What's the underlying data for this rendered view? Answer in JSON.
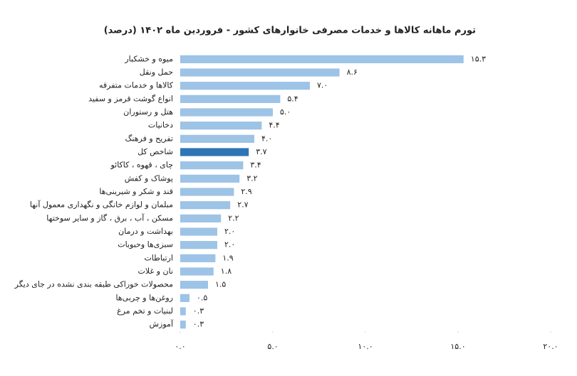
{
  "chart_data": {
    "type": "bar",
    "orientation": "horizontal",
    "title": "تورم ماهانه کالاها و خدمات مصرفی خانوارهای کشور - فروردین ماه ۱۴۰۲ (درصد)",
    "categories": [
      "میوه و خشکبار",
      "حمل ونقل",
      "کالاها و خدمات متفرقه",
      "انواع گوشت قرمز و سفید",
      "هتل و رستوران",
      "دخانیات",
      "تفریح و فرهنگ",
      "شاخص کل",
      "چای ، قهوه ، کاکائو",
      "پوشاک و کفش",
      "قند و شکر و شیرینی‌ها",
      "مبلمان و لوازم خانگی و نگهداری معمول آنها",
      "مسکن ، آب ، برق ، گاز و سایر سوختها",
      "بهداشت و درمان",
      "سبزی‌ها وحبوبات",
      "ارتباطات",
      "نان و غلات",
      "محصولات خوراکی طبقه بندی نشده در جای دیگر",
      "روغن‌ها و چربی‌ها",
      "لبنیات و تخم مرغ",
      "آموزش"
    ],
    "values": [
      15.3,
      8.6,
      7.0,
      5.4,
      5.0,
      4.4,
      4.0,
      3.7,
      3.4,
      3.2,
      2.9,
      2.7,
      2.2,
      2.0,
      2.0,
      1.9,
      1.8,
      1.5,
      0.5,
      0.3,
      0.3
    ],
    "value_labels": [
      "۱۵.۳",
      "۸.۶",
      "۷.۰",
      "۵.۴",
      "۵.۰",
      "۴.۴",
      "۴.۰",
      "۳.۷",
      "۳.۴",
      "۳.۲",
      "۲.۹",
      "۲.۷",
      "۲.۲",
      "۲.۰",
      "۲.۰",
      "۱.۹",
      "۱.۸",
      "۱.۵",
      "۰.۵",
      "۰.۳",
      "۰.۳"
    ],
    "colors": [
      "#9dc3e6",
      "#9dc3e6",
      "#9dc3e6",
      "#9dc3e6",
      "#9dc3e6",
      "#9dc3e6",
      "#9dc3e6",
      "#2e75b6",
      "#9dc3e6",
      "#9dc3e6",
      "#9dc3e6",
      "#9dc3e6",
      "#9dc3e6",
      "#9dc3e6",
      "#9dc3e6",
      "#9dc3e6",
      "#9dc3e6",
      "#9dc3e6",
      "#9dc3e6",
      "#9dc3e6",
      "#9dc3e6"
    ],
    "xlim": [
      0,
      20
    ],
    "xticks": [
      {
        "value": 0,
        "label": "۰.۰"
      },
      {
        "value": 5,
        "label": "۵.۰"
      },
      {
        "value": 10,
        "label": "۱۰.۰"
      },
      {
        "value": 15,
        "label": "۱۵.۰"
      },
      {
        "value": 20,
        "label": "۲۰.۰"
      }
    ],
    "grid": false
  }
}
